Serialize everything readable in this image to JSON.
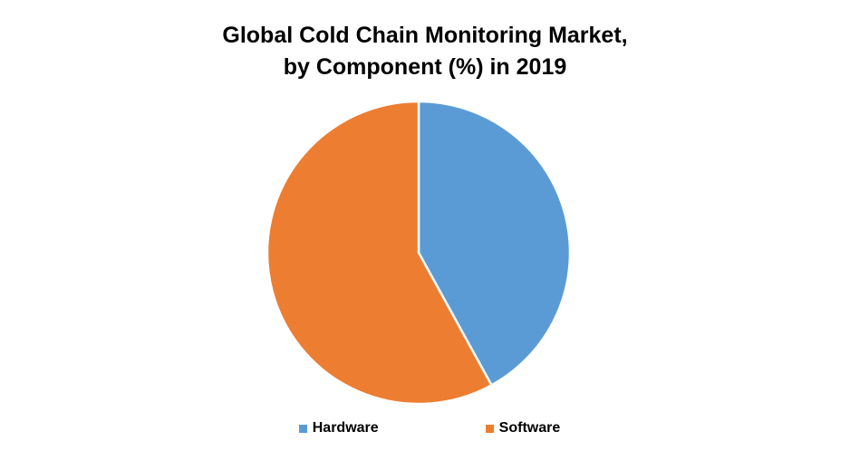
{
  "chart_data": {
    "type": "pie",
    "title_lines": [
      "Global Cold Chain Monitoring Market,",
      "by Component (%) in 2019"
    ],
    "categories": [
      "Hardware",
      "Software"
    ],
    "values": [
      42,
      58
    ],
    "colors": [
      "#5B9BD5",
      "#ED7D31"
    ],
    "legend_position": "bottom"
  }
}
